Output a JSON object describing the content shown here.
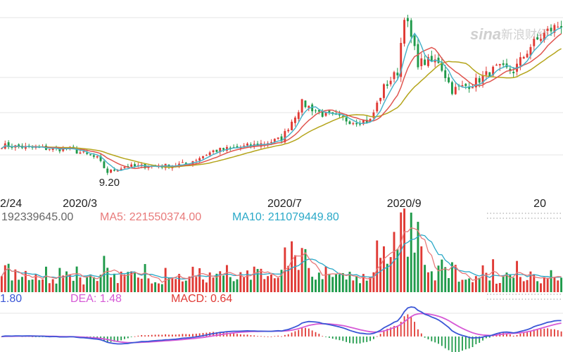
{
  "watermark": {
    "logo_text": "sina",
    "site_name": "新浪财经"
  },
  "colors": {
    "up": "#e03a35",
    "down": "#1f9a4a",
    "ma5": "#4ab3c9",
    "ma10": "#e0554f",
    "ma20": "#b5a51c",
    "volume_ma5": "#e87a7a",
    "volume_ma10": "#2aa9c8",
    "dif": "#3b56d6",
    "dea": "#d65ad6",
    "grid": "#e6e6e6",
    "text": "#555555"
  },
  "chart_data": {
    "type": "candlestick",
    "x_axis_labels": [
      {
        "label": "2/24",
        "index": 0
      },
      {
        "label": "2020/3",
        "index": 22
      },
      {
        "label": "2020/7",
        "index": 82
      },
      {
        "label": "2020/9",
        "index": 117
      },
      {
        "label": "20",
        "index": 160
      }
    ],
    "annotations": [
      {
        "label": "9.20",
        "index": 31
      }
    ],
    "price_range": [
      8.5,
      28
    ],
    "candle_count": 165,
    "price_anchors": [
      [
        0,
        12.2
      ],
      [
        10,
        11.9
      ],
      [
        20,
        11.8
      ],
      [
        28,
        10.8
      ],
      [
        31,
        9.3
      ],
      [
        36,
        9.9
      ],
      [
        48,
        10.0
      ],
      [
        54,
        10.2
      ],
      [
        62,
        11.6
      ],
      [
        75,
        12.3
      ],
      [
        82,
        12.9
      ],
      [
        88,
        16.8
      ],
      [
        94,
        15.6
      ],
      [
        103,
        14.8
      ],
      [
        108,
        14.9
      ],
      [
        112,
        18.5
      ],
      [
        116,
        20.2
      ],
      [
        118,
        26.5
      ],
      [
        122,
        21.2
      ],
      [
        128,
        21.4
      ],
      [
        132,
        18.2
      ],
      [
        138,
        18.9
      ],
      [
        145,
        20.6
      ],
      [
        150,
        20.3
      ],
      [
        155,
        23.0
      ],
      [
        160,
        24.6
      ],
      [
        164,
        25.4
      ]
    ],
    "volume_panel": {
      "vol_label": "192339645.00",
      "ma5_label": "MA5: 221550374.00",
      "ma10_label": "MA10: 211079449.80",
      "volume_range": [
        0,
        1000000000
      ],
      "base_volume": 180000000
    },
    "macd_panel": {
      "dif_label": "1.80",
      "dea_label": "DEA: 1.48",
      "macd_label": "MACD: 0.64"
    }
  }
}
